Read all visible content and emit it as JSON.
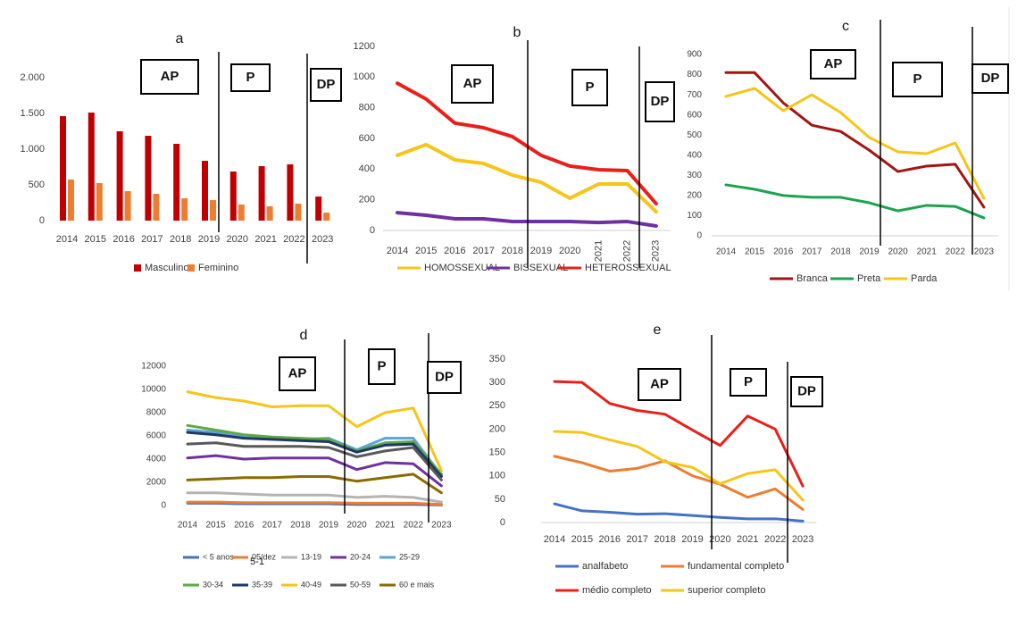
{
  "chart_data": [
    {
      "type": "bar",
      "title": "a",
      "categories": [
        "2014",
        "2015",
        "2016",
        "2017",
        "2018",
        "2019",
        "2020",
        "2021",
        "2022",
        "2023"
      ],
      "series": [
        {
          "name": "Masculino",
          "color": "#c00000",
          "values": [
            1462,
            1512,
            1250,
            1187,
            1075,
            837,
            687,
            762,
            787,
            337
          ]
        },
        {
          "name": "Feminino",
          "color": "#ed7d31",
          "values": [
            575,
            525,
            412,
            375,
            312,
            287,
            225,
            200,
            237,
            112
          ]
        }
      ],
      "ylim": [
        0,
        2000
      ],
      "yticks": [
        0,
        500,
        {
          "value": 1000,
          "label": "1.000"
        },
        {
          "value": 1500,
          "label": "1.500"
        },
        {
          "value": 2000,
          "label": "2.000"
        }
      ],
      "annotations": [
        "AP",
        "P",
        "DP"
      ]
    },
    {
      "type": "line",
      "title": "b",
      "categories": [
        "2014",
        "2015",
        "2016",
        "2017",
        "2018",
        "2019",
        "2020",
        "2021",
        "2022",
        "2023"
      ],
      "series": [
        {
          "name": "HOMOSSEXUAL",
          "color": "#f5c518",
          "values": [
            490,
            560,
            460,
            437,
            361,
            314,
            210,
            303,
            303,
            122
          ]
        },
        {
          "name": "BISSEXUAL",
          "color": "#7030a0",
          "values": [
            116,
            99,
            76,
            76,
            58,
            58,
            58,
            52,
            58,
            29
          ]
        },
        {
          "name": "HETEROSSEXUAL",
          "color": "#e8201a",
          "values": [
            960,
            857,
            700,
            670,
            612,
            490,
            420,
            396,
            390,
            175
          ]
        }
      ],
      "ylim": [
        0,
        1200
      ],
      "yticks": [
        0,
        200,
        400,
        600,
        800,
        1000,
        1200
      ],
      "annotations": [
        "AP",
        "P",
        "DP"
      ]
    },
    {
      "type": "line",
      "title": "c",
      "categories": [
        "2014",
        "2015",
        "2016",
        "2017",
        "2018",
        "2019",
        "2020",
        "2021",
        "2022",
        "2023"
      ],
      "series": [
        {
          "name": "Branca",
          "color": "#a31515",
          "values": [
            810,
            810,
            660,
            549,
            518,
            425,
            319,
            346,
            355,
            142
          ]
        },
        {
          "name": "Preta",
          "color": "#1ca350",
          "values": [
            253,
            231,
            200,
            191,
            191,
            164,
            124,
            151,
            146,
            89
          ]
        },
        {
          "name": "Parda",
          "color": "#f5c518",
          "values": [
            692,
            732,
            621,
            700,
            612,
            488,
            417,
            408,
            461,
            186
          ]
        }
      ],
      "ylim": [
        0,
        900
      ],
      "yticks": [
        0,
        100,
        200,
        300,
        400,
        500,
        600,
        700,
        800,
        900
      ],
      "annotations": [
        "AP",
        "P",
        "DP"
      ]
    },
    {
      "type": "line",
      "title": "d",
      "categories": [
        "2014",
        "2015",
        "2016",
        "2017",
        "2018",
        "2019",
        "2020",
        "2021",
        "2022",
        "2023"
      ],
      "series": [
        {
          "name": "< 5 anos",
          "color": "#4472c4",
          "values": [
            200,
            200,
            150,
            150,
            150,
            150,
            100,
            100,
            100,
            50
          ]
        },
        {
          "name": "05/dez",
          "color": "#ed7d31",
          "values": [
            300,
            300,
            250,
            250,
            250,
            250,
            200,
            200,
            200,
            100
          ]
        },
        {
          "name": "13-19",
          "color": "#b4b4b4",
          "values": [
            1100,
            1100,
            1000,
            900,
            900,
            900,
            700,
            800,
            700,
            300
          ]
        },
        {
          "name": "20-24",
          "color": "#7030a0",
          "values": [
            4100,
            4300,
            4000,
            4100,
            4100,
            4100,
            3100,
            3700,
            3600,
            1700
          ]
        },
        {
          "name": "25-29",
          "color": "#5ba3d9",
          "values": [
            6500,
            6300,
            5900,
            5700,
            5700,
            5800,
            4800,
            5800,
            5800,
            2600
          ]
        },
        {
          "name": "30-34",
          "color": "#5fa845",
          "values": [
            6900,
            6500,
            6100,
            5900,
            5800,
            5700,
            4700,
            5400,
            5500,
            2700
          ]
        },
        {
          "name": "35-39",
          "color": "#1f3864",
          "values": [
            6300,
            6100,
            5800,
            5700,
            5600,
            5500,
            4600,
            5200,
            5300,
            2500
          ]
        },
        {
          "name": "40-49",
          "color": "#f5c518",
          "values": [
            9800,
            9300,
            9000,
            8500,
            8600,
            8600,
            6800,
            8000,
            8400,
            3000
          ]
        },
        {
          "name": "50-59",
          "color": "#595959",
          "values": [
            5300,
            5400,
            5100,
            5100,
            5100,
            5000,
            4200,
            4700,
            5000,
            2200
          ]
        },
        {
          "name": "60 e mais",
          "color": "#8b6b00",
          "values": [
            2200,
            2300,
            2400,
            2400,
            2500,
            2500,
            2100,
            2400,
            2700,
            1100
          ]
        }
      ],
      "ylim": [
        0,
        12000
      ],
      "yticks": [
        0,
        2000,
        4000,
        6000,
        8000,
        10000,
        12000
      ],
      "annotations": [
        "AP",
        "P",
        "DP",
        "5-1"
      ]
    },
    {
      "type": "line",
      "title": "e",
      "categories": [
        "2014",
        "2015",
        "2016",
        "2017",
        "2018",
        "2019",
        "2020",
        "2021",
        "2022",
        "2023"
      ],
      "series": [
        {
          "name": "analfabeto",
          "color": "#4472c4",
          "values": [
            40,
            25,
            22,
            18,
            19,
            15,
            11,
            8,
            8,
            3
          ]
        },
        {
          "name": "fundamental completo",
          "color": "#ed7d31",
          "values": [
            142,
            128,
            110,
            116,
            132,
            100,
            82,
            54,
            72,
            28
          ]
        },
        {
          "name": "médio completo",
          "color": "#e8201a",
          "values": [
            302,
            300,
            255,
            240,
            232,
            198,
            165,
            228,
            200,
            78
          ]
        },
        {
          "name": "superior completo",
          "color": "#f5c518",
          "values": [
            195,
            193,
            177,
            163,
            130,
            118,
            83,
            105,
            113,
            48
          ]
        }
      ],
      "ylim": [
        0,
        350
      ],
      "yticks": [
        0,
        50,
        100,
        150,
        200,
        250,
        300,
        350
      ],
      "annotations": [
        "AP",
        "P",
        "DP"
      ]
    }
  ]
}
